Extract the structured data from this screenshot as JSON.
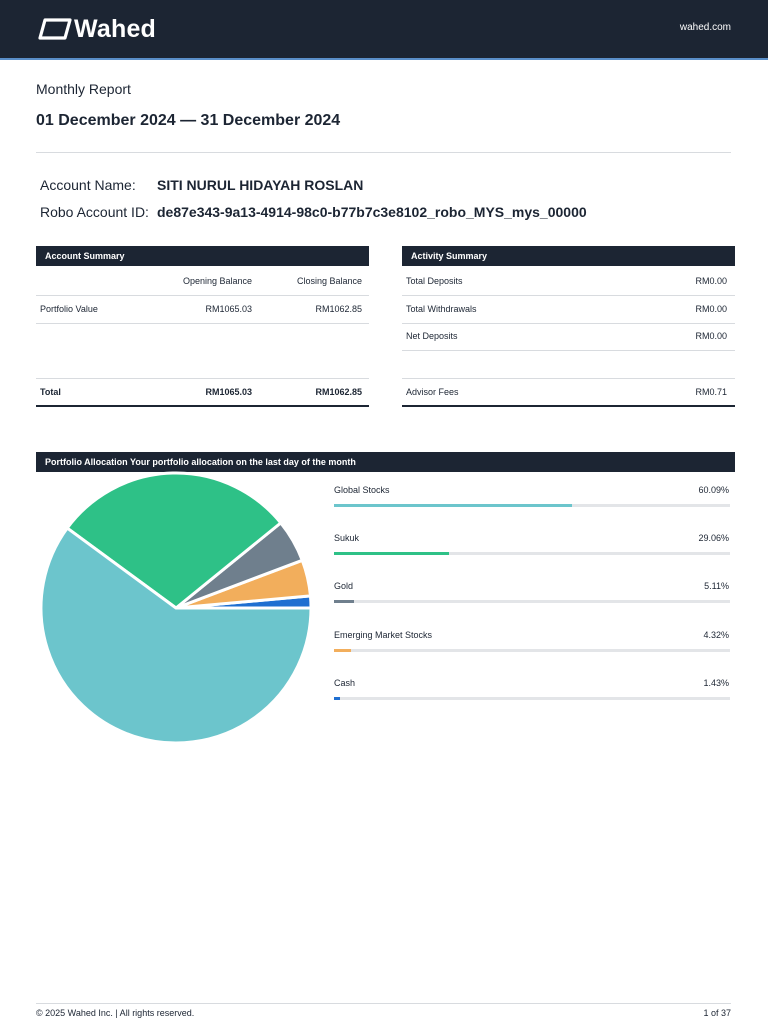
{
  "header": {
    "brand": "Wahed",
    "site": "wahed.com"
  },
  "report": {
    "label": "Monthly Report",
    "date_range": "01 December 2024 — 31 December 2024"
  },
  "account": {
    "name_label": "Account Name:",
    "name_value": "SITI NURUL HIDAYAH ROSLAN",
    "id_label": "Robo Account ID:",
    "id_value": "de87e343-9a13-4914-98c0-b77b7c3e8102_robo_MYS_mys_00000"
  },
  "account_summary": {
    "title": "Account Summary",
    "columns": [
      "Opening Balance",
      "Closing Balance"
    ],
    "rows": [
      {
        "label": "Portfolio Value",
        "opening": "RM1065.03",
        "closing": "RM1062.85"
      }
    ],
    "total": {
      "label": "Total",
      "opening": "RM1065.03",
      "closing": "RM1062.85"
    }
  },
  "activity_summary": {
    "title": "Activity Summary",
    "rows": [
      {
        "label": "Total Deposits",
        "value": "RM0.00"
      },
      {
        "label": "Total Withdrawals",
        "value": "RM0.00"
      },
      {
        "label": "Net Deposits",
        "value": "RM0.00"
      }
    ],
    "fees": {
      "label": "Advisor Fees",
      "value": "RM0.71"
    }
  },
  "allocation": {
    "title": "Portfolio Allocation Your portfolio allocation on the last day of the month",
    "items": [
      {
        "name": "Global Stocks",
        "pct_label": "60.09%",
        "value": 60.09,
        "color": "#6cc5cc"
      },
      {
        "name": "Sukuk",
        "pct_label": "29.06%",
        "value": 29.06,
        "color": "#2ec187"
      },
      {
        "name": "Gold",
        "pct_label": "5.11%",
        "value": 5.11,
        "color": "#6f7f8d"
      },
      {
        "name": "Emerging Market Stocks",
        "pct_label": "4.32%",
        "value": 4.32,
        "color": "#f2ae5c"
      },
      {
        "name": "Cash",
        "pct_label": "1.43%",
        "value": 1.43,
        "color": "#1f6fd1"
      }
    ]
  },
  "footer": {
    "copyright": "© 2025 Wahed Inc. | All rights reserved.",
    "page": "1 of 37"
  }
}
